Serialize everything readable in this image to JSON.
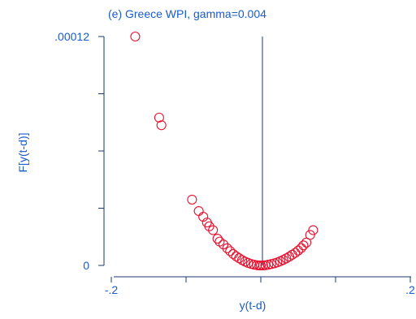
{
  "chart_data": {
    "type": "scatter",
    "title": "(e) Greece WPI, gamma=0.004",
    "xlabel": "y(t-d)",
    "ylabel": "F[y(t-d)]",
    "xlim": [
      -0.2,
      0.2
    ],
    "ylim": [
      0,
      0.00012
    ],
    "x_ticks": [
      -0.2,
      -0.1,
      0,
      0.1,
      0.2
    ],
    "x_tick_labels": [
      "-.2",
      "",
      "",
      "",
      ".2"
    ],
    "y_ticks": [
      0,
      3e-05,
      6e-05,
      9e-05,
      0.00012
    ],
    "y_tick_labels": [
      "0",
      "",
      "",
      "",
      ".00012"
    ],
    "reference_line_x": 0,
    "grid": false,
    "colors": {
      "text": "#1a5cc8",
      "axis": "#1a3a6e",
      "marker": "#e8102e"
    },
    "marker": "hollow-circle",
    "points": [
      {
        "x": -0.168,
        "y": 0.00012
      },
      {
        "x": -0.136,
        "y": 7.75e-05
      },
      {
        "x": -0.133,
        "y": 7.35e-05
      },
      {
        "x": -0.092,
        "y": 3.45e-05
      },
      {
        "x": -0.083,
        "y": 2.85e-05
      },
      {
        "x": -0.077,
        "y": 2.55e-05
      },
      {
        "x": -0.072,
        "y": 2.25e-05
      },
      {
        "x": -0.069,
        "y": 2.05e-05
      },
      {
        "x": -0.064,
        "y": 1.85e-05
      },
      {
        "x": -0.058,
        "y": 1.4e-05
      },
      {
        "x": -0.055,
        "y": 1.25e-05
      },
      {
        "x": -0.05,
        "y": 1.1e-05
      },
      {
        "x": -0.045,
        "y": 9e-06
      },
      {
        "x": -0.041,
        "y": 7.5e-06
      },
      {
        "x": -0.037,
        "y": 6e-06
      },
      {
        "x": -0.033,
        "y": 4.8e-06
      },
      {
        "x": -0.029,
        "y": 3.8e-06
      },
      {
        "x": -0.025,
        "y": 2.8e-06
      },
      {
        "x": -0.021,
        "y": 2e-06
      },
      {
        "x": -0.017,
        "y": 1.3e-06
      },
      {
        "x": -0.013,
        "y": 8e-07
      },
      {
        "x": -0.009,
        "y": 4e-07
      },
      {
        "x": -0.005,
        "y": 1e-07
      },
      {
        "x": -0.002,
        "y": 0.0
      },
      {
        "x": 0.0,
        "y": 0.0
      },
      {
        "x": 0.003,
        "y": 0.0
      },
      {
        "x": 0.006,
        "y": 1e-07
      },
      {
        "x": 0.01,
        "y": 4e-07
      },
      {
        "x": 0.014,
        "y": 7e-07
      },
      {
        "x": 0.018,
        "y": 1.1e-06
      },
      {
        "x": 0.022,
        "y": 1.6e-06
      },
      {
        "x": 0.026,
        "y": 2.2e-06
      },
      {
        "x": 0.03,
        "y": 2.9e-06
      },
      {
        "x": 0.034,
        "y": 3.7e-06
      },
      {
        "x": 0.038,
        "y": 4.6e-06
      },
      {
        "x": 0.042,
        "y": 5.6e-06
      },
      {
        "x": 0.046,
        "y": 6.6e-06
      },
      {
        "x": 0.05,
        "y": 7.8e-06
      },
      {
        "x": 0.054,
        "y": 9.1e-06
      },
      {
        "x": 0.057,
        "y": 1.05e-05
      },
      {
        "x": 0.061,
        "y": 1.2e-05
      },
      {
        "x": 0.066,
        "y": 1.6e-05
      },
      {
        "x": 0.07,
        "y": 1.85e-05
      }
    ]
  }
}
